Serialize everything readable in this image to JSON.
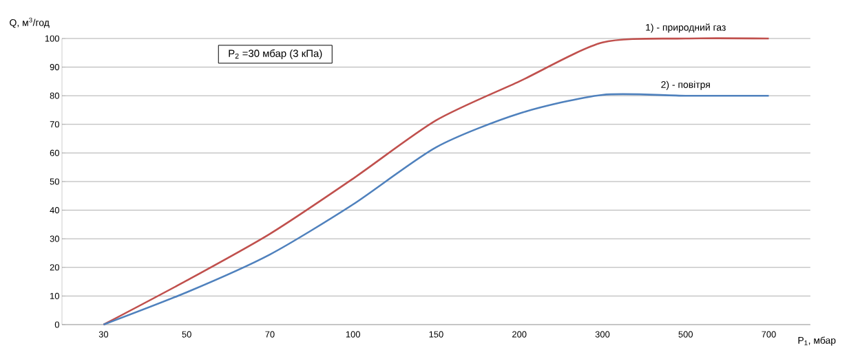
{
  "chart_data": {
    "type": "line",
    "xlabel": "P$_{1}$, мбар",
    "ylabel": "Q, м$^{3}$/год",
    "annotations": [
      "P$_{2}$ =30 мбар (3 кПа)"
    ],
    "categories": [
      "30",
      "50",
      "70",
      "100",
      "150",
      "200",
      "300",
      "500",
      "700"
    ],
    "series": [
      {
        "name": "1) - природний газ",
        "color": "#c0504d",
        "values": [
          0,
          15.4,
          31.7,
          51,
          71.4,
          85,
          98.6,
          100,
          100
        ]
      },
      {
        "name": "2) - повітря",
        "color": "#4f81bd",
        "values": [
          0,
          11.3,
          24.5,
          42,
          62,
          73.8,
          80.3,
          80,
          80
        ]
      }
    ],
    "ylim": [
      0,
      100
    ],
    "yticks": [
      0,
      10,
      20,
      30,
      40,
      50,
      60,
      70,
      80,
      90,
      100
    ],
    "grid": "y",
    "marker": "none",
    "line_style": "solid"
  }
}
